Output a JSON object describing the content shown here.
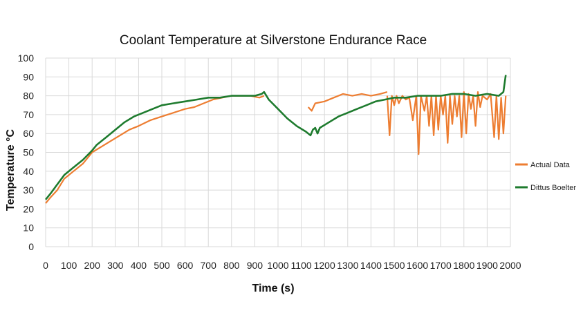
{
  "chart_data": {
    "type": "line",
    "title": "Coolant Temperature at Silverstone Endurance Race",
    "xlabel": "Time (s)",
    "ylabel": "Temperature °C",
    "xlim": [
      0,
      2000
    ],
    "ylim": [
      0,
      100
    ],
    "x_ticks": [
      "0",
      "100",
      "200",
      "300",
      "400",
      "500",
      "600",
      "700",
      "800",
      "900",
      "1000",
      "1100",
      "1200",
      "1300",
      "1400",
      "1500",
      "1600",
      "1700",
      "1800",
      "1900",
      "2000"
    ],
    "y_ticks": [
      "0",
      "10",
      "20",
      "30",
      "40",
      "50",
      "60",
      "70",
      "80",
      "90",
      "100"
    ],
    "grid": "vertical and horizontal",
    "legend_position": "right",
    "series": [
      {
        "name": "Actual Data",
        "color": "#ED7D31",
        "segments": [
          [
            [
              0,
              23
            ],
            [
              20,
              26
            ],
            [
              50,
              30
            ],
            [
              80,
              36
            ],
            [
              120,
              40
            ],
            [
              160,
              44
            ],
            [
              200,
              50
            ],
            [
              240,
              53
            ],
            [
              280,
              56
            ],
            [
              320,
              59
            ],
            [
              360,
              62
            ],
            [
              400,
              64
            ],
            [
              450,
              67
            ],
            [
              500,
              69
            ],
            [
              550,
              71
            ],
            [
              600,
              73
            ],
            [
              640,
              74
            ],
            [
              680,
              76
            ],
            [
              720,
              78
            ],
            [
              760,
              79
            ],
            [
              800,
              80
            ],
            [
              840,
              80
            ],
            [
              880,
              80
            ],
            [
              920,
              79
            ],
            [
              940,
              80
            ]
          ],
          [
            [
              1130,
              74
            ],
            [
              1145,
              72
            ],
            [
              1160,
              76
            ],
            [
              1200,
              77
            ],
            [
              1240,
              79
            ],
            [
              1280,
              81
            ],
            [
              1320,
              80
            ],
            [
              1360,
              81
            ],
            [
              1400,
              80
            ],
            [
              1440,
              81
            ],
            [
              1470,
              82
            ]
          ],
          [
            [
              1470,
              80
            ],
            [
              1480,
              59
            ],
            [
              1490,
              80
            ],
            [
              1500,
              75
            ],
            [
              1510,
              80
            ],
            [
              1520,
              76
            ],
            [
              1535,
              80
            ],
            [
              1550,
              78
            ],
            [
              1565,
              79
            ],
            [
              1580,
              67
            ],
            [
              1595,
              80
            ],
            [
              1605,
              49
            ],
            [
              1615,
              80
            ],
            [
              1630,
              72
            ],
            [
              1640,
              80
            ],
            [
              1650,
              64
            ],
            [
              1660,
              80
            ],
            [
              1670,
              59
            ],
            [
              1680,
              80
            ],
            [
              1690,
              62
            ],
            [
              1700,
              80
            ],
            [
              1710,
              70
            ],
            [
              1720,
              80
            ],
            [
              1730,
              55
            ],
            [
              1740,
              80
            ],
            [
              1750,
              65
            ],
            [
              1760,
              80
            ],
            [
              1770,
              69
            ],
            [
              1780,
              80
            ],
            [
              1790,
              58
            ],
            [
              1800,
              82
            ],
            [
              1810,
              60
            ],
            [
              1820,
              81
            ],
            [
              1830,
              73
            ],
            [
              1840,
              80
            ],
            [
              1850,
              64
            ],
            [
              1860,
              82
            ],
            [
              1870,
              74
            ],
            [
              1880,
              80
            ],
            [
              1900,
              78
            ],
            [
              1915,
              81
            ],
            [
              1930,
              58
            ],
            [
              1940,
              80
            ],
            [
              1950,
              57
            ],
            [
              1960,
              79
            ],
            [
              1970,
              60
            ],
            [
              1980,
              80
            ]
          ]
        ]
      },
      {
        "name": "Dittus Boelter",
        "color": "#1E7B2E",
        "segments": [
          [
            [
              0,
              25
            ],
            [
              20,
              28
            ],
            [
              50,
              33
            ],
            [
              80,
              38
            ],
            [
              120,
              42
            ],
            [
              160,
              46
            ],
            [
              200,
              51
            ],
            [
              220,
              54
            ],
            [
              260,
              58
            ],
            [
              300,
              62
            ],
            [
              340,
              66
            ],
            [
              380,
              69
            ],
            [
              420,
              71
            ],
            [
              460,
              73
            ],
            [
              500,
              75
            ],
            [
              550,
              76
            ],
            [
              600,
              77
            ],
            [
              650,
              78
            ],
            [
              700,
              79
            ],
            [
              750,
              79
            ],
            [
              800,
              80
            ],
            [
              850,
              80
            ],
            [
              900,
              80
            ],
            [
              930,
              81
            ],
            [
              940,
              82
            ],
            [
              960,
              78
            ],
            [
              1000,
              73
            ],
            [
              1040,
              68
            ],
            [
              1080,
              64
            ],
            [
              1120,
              61
            ],
            [
              1140,
              59
            ],
            [
              1150,
              62
            ],
            [
              1160,
              63
            ],
            [
              1170,
              60
            ],
            [
              1180,
              63
            ],
            [
              1220,
              66
            ],
            [
              1260,
              69
            ],
            [
              1300,
              71
            ],
            [
              1340,
              73
            ],
            [
              1380,
              75
            ],
            [
              1420,
              77
            ],
            [
              1460,
              78
            ],
            [
              1500,
              79
            ],
            [
              1550,
              79
            ],
            [
              1600,
              80
            ],
            [
              1650,
              80
            ],
            [
              1700,
              80
            ],
            [
              1750,
              81
            ],
            [
              1800,
              81
            ],
            [
              1850,
              80
            ],
            [
              1900,
              81
            ],
            [
              1950,
              80
            ],
            [
              1970,
              82
            ],
            [
              1980,
              91
            ]
          ]
        ]
      }
    ]
  }
}
